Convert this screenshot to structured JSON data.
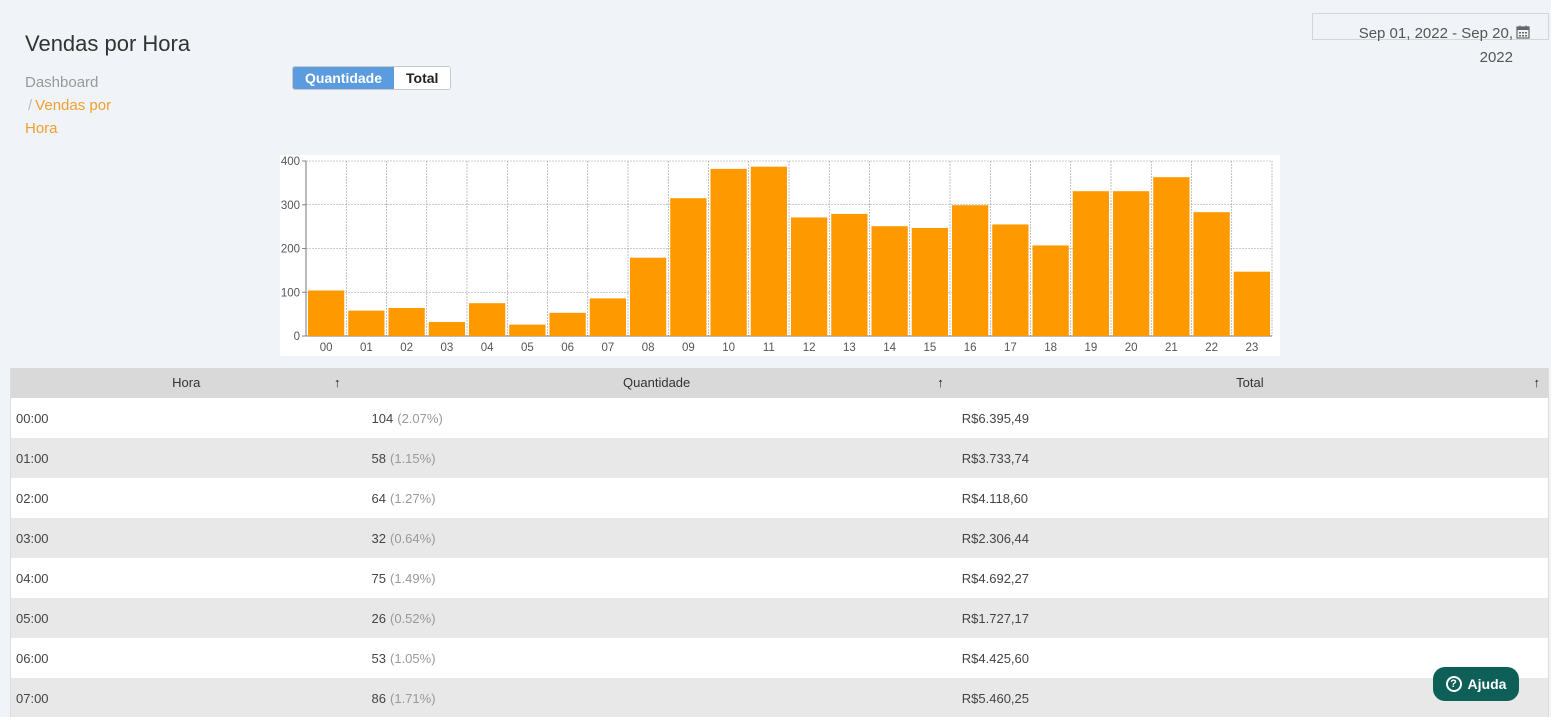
{
  "header": {
    "title": "Vendas por Hora",
    "breadcrumb": {
      "root": "Dashboard",
      "separator": "/",
      "current": "Vendas por Hora"
    }
  },
  "toggle": {
    "options": [
      "Quantidade",
      "Total"
    ],
    "active": "Quantidade"
  },
  "date_range": {
    "value": "Sep 01, 2022 - Sep 20, 2022",
    "icon": "calendar-icon"
  },
  "colors": {
    "bar": "#ff9900",
    "accent": "#5b9be0",
    "breadcrumb_current": "#f0a030",
    "help_button": "#0d5f58"
  },
  "chart_data": {
    "type": "bar",
    "categories": [
      "00",
      "01",
      "02",
      "03",
      "04",
      "05",
      "06",
      "07",
      "08",
      "09",
      "10",
      "11",
      "12",
      "13",
      "14",
      "15",
      "16",
      "17",
      "18",
      "19",
      "20",
      "21",
      "22",
      "23"
    ],
    "values": [
      104,
      58,
      64,
      32,
      75,
      26,
      53,
      86,
      179,
      315,
      382,
      387,
      271,
      279,
      251,
      247,
      299,
      255,
      207,
      331,
      331,
      363,
      283,
      147
    ],
    "yticks": [
      0,
      100,
      200,
      300,
      400
    ],
    "ylim": [
      0,
      400
    ],
    "grid": true
  },
  "table": {
    "columns": [
      {
        "label": "Hora",
        "sort_icon": "arrow-up-icon"
      },
      {
        "label": "Quantidade",
        "sort_icon": "arrow-up-icon"
      },
      {
        "label": "Total",
        "sort_icon": "arrow-up-icon"
      }
    ],
    "rows": [
      {
        "hora": "00:00",
        "qtd": "104",
        "pct": "(2.07%)",
        "total": "R$6.395,49"
      },
      {
        "hora": "01:00",
        "qtd": "58",
        "pct": "(1.15%)",
        "total": "R$3.733,74"
      },
      {
        "hora": "02:00",
        "qtd": "64",
        "pct": "(1.27%)",
        "total": "R$4.118,60"
      },
      {
        "hora": "03:00",
        "qtd": "32",
        "pct": "(0.64%)",
        "total": "R$2.306,44"
      },
      {
        "hora": "04:00",
        "qtd": "75",
        "pct": "(1.49%)",
        "total": "R$4.692,27"
      },
      {
        "hora": "05:00",
        "qtd": "26",
        "pct": "(0.52%)",
        "total": "R$1.727,17"
      },
      {
        "hora": "06:00",
        "qtd": "53",
        "pct": "(1.05%)",
        "total": "R$4.425,60"
      },
      {
        "hora": "07:00",
        "qtd": "86",
        "pct": "(1.71%)",
        "total": "R$5.460,25"
      }
    ]
  },
  "help": {
    "label": "Ajuda",
    "icon": "question-circle-icon"
  }
}
